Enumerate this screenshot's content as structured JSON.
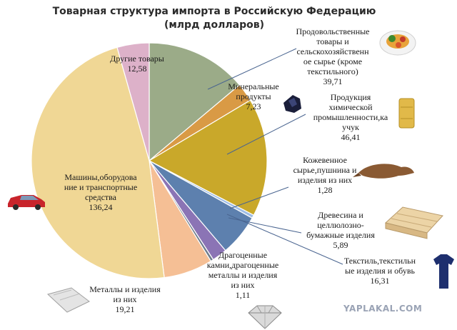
{
  "chart_data": {
    "type": "pie",
    "title_line1": "Товарная структура импорта в Российскую Федерацию",
    "title_line2": "(млрд долларов)",
    "categories": [
      "Продовольственные товары и сельскохозяйственное сырье (кроме текстильного)",
      "Минеральные продукты",
      "Продукция химической промышленности,каучук",
      "Кожевенное сырье,пушнина и изделия из них",
      "Текстиль,текстильные изделия и обувь",
      "Древесина и целлюлозно-бумажные изделия",
      "Драгоценные камни,драгоценные металлы и изделия из них",
      "Металлы и изделия из них",
      "Машины,оборудование и транспортные средства",
      "Другие товары"
    ],
    "values": [
      39.71,
      7.23,
      46.41,
      1.28,
      16.31,
      5.89,
      1.11,
      19.21,
      136.24,
      12.58
    ],
    "colors": [
      "#9bab88",
      "#d99a45",
      "#c9a82a",
      "#9fbde6",
      "#5d80ae",
      "#8b74b5",
      "#6f7d8c",
      "#f5bf95",
      "#f0d795",
      "#ddb1c9"
    ],
    "labels": {
      "food": {
        "line1": "Продовольственные",
        "line2": "товары и",
        "line3": "сельскохозяйственн",
        "line4": "ое сырье (кроме",
        "line5": "текстильного)",
        "value": "39,71"
      },
      "mineral": {
        "line1": "Минеральные",
        "line2": "продукты",
        "value": "7,23"
      },
      "chem": {
        "line1": "Продукция",
        "line2": "химической",
        "line3": "промышленности,ка",
        "line4": "учук",
        "value": "46,41"
      },
      "leather": {
        "line1": "Кожевенное",
        "line2": "сырье,пушнина и",
        "line3": "изделия из них",
        "value": "1,28"
      },
      "wood": {
        "line1": "Древесина и",
        "line2": "целлюлозно-",
        "line3": "бумажные изделия",
        "value": "5,89"
      },
      "textile": {
        "line1": "Текстиль,текстильн",
        "line2": "ые изделия и обувь",
        "value": "16,31"
      },
      "gems": {
        "line1": "Драгоценные",
        "line2": "камни,драгоценные",
        "line3": "металлы и изделия",
        "line4": "из них",
        "value": "1,11"
      },
      "metals": {
        "line1": "Металлы и изделия",
        "line2": "из них",
        "value": "19,21"
      },
      "machines": {
        "line1": "Машины,оборудова",
        "line2": "ние и транспортные",
        "line3": "средства",
        "value": "136,24"
      },
      "other": {
        "line1": "Другие товары",
        "value": "12,58"
      }
    }
  },
  "watermark": "YAPLAKAL.COM",
  "icons": [
    "food-plate-icon",
    "coal-icon",
    "chemical-bag-icon",
    "fur-pelt-icon",
    "lumber-icon",
    "tshirt-icon",
    "diamond-icon",
    "metal-sheet-icon",
    "car-icon"
  ]
}
